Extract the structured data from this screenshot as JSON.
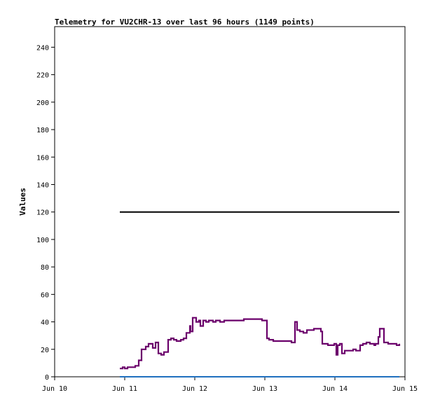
{
  "chart_data": {
    "type": "line",
    "title": "Telemetry for VU2CHR-13 over last 96 hours (1149 points)",
    "xlabel": "",
    "ylabel": "Values",
    "xlim": [
      "Jun 10",
      "Jun 15"
    ],
    "ylim": [
      0,
      255
    ],
    "grid": false,
    "legend": "none",
    "x_ticks": [
      "Jun 10",
      "Jun 11",
      "Jun 12",
      "Jun 13",
      "Jun 14",
      "Jun 15"
    ],
    "y_ticks": [
      0,
      20,
      40,
      60,
      80,
      100,
      120,
      140,
      160,
      180,
      200,
      220,
      240
    ],
    "series": [
      {
        "color": "#000000",
        "x": [
          10.93,
          14.92
        ],
        "y": [
          120,
          120
        ]
      },
      {
        "color": "#6b006b",
        "x": [
          10.93,
          10.97,
          11.0,
          11.04,
          11.1,
          11.15,
          11.2,
          11.24,
          11.3,
          11.34,
          11.4,
          11.44,
          11.48,
          11.52,
          11.56,
          11.62,
          11.66,
          11.7,
          11.74,
          11.8,
          11.84,
          11.88,
          11.93,
          11.94,
          11.97,
          12.02,
          12.06,
          12.08,
          12.12,
          12.16,
          12.2,
          12.26,
          12.3,
          12.36,
          12.42,
          12.5,
          12.6,
          12.7,
          12.8,
          12.9,
          12.96,
          13.03,
          13.06,
          13.12,
          13.2,
          13.3,
          13.38,
          13.43,
          13.46,
          13.5,
          13.55,
          13.6,
          13.7,
          13.8,
          13.82,
          13.85,
          13.9,
          13.95,
          13.99,
          14.02,
          14.04,
          14.07,
          14.1,
          14.14,
          14.2,
          14.26,
          14.3,
          14.36,
          14.4,
          14.45,
          14.5,
          14.56,
          14.58,
          14.62,
          14.64,
          14.7,
          14.76,
          14.82,
          14.88,
          14.92
        ],
        "y": [
          6,
          7,
          6,
          7,
          7,
          8,
          12,
          20,
          22,
          24,
          21,
          25,
          17,
          16,
          18,
          27,
          28,
          27,
          26,
          27,
          28,
          32,
          37,
          33,
          43,
          40,
          41,
          37,
          41,
          40,
          41,
          40,
          41,
          40,
          41,
          41,
          41,
          42,
          42,
          42,
          41,
          28,
          27,
          26,
          26,
          26,
          25,
          40,
          34,
          33,
          32,
          34,
          35,
          33,
          24,
          24,
          23,
          23,
          24,
          16,
          23,
          24,
          17,
          19,
          19,
          20,
          19,
          23,
          24,
          25,
          24,
          23,
          24,
          29,
          35,
          25,
          24,
          24,
          23,
          24
        ]
      },
      {
        "color": "#1f6fbf",
        "x": [
          10.93,
          14.92
        ],
        "y": [
          0,
          0
        ]
      }
    ]
  }
}
